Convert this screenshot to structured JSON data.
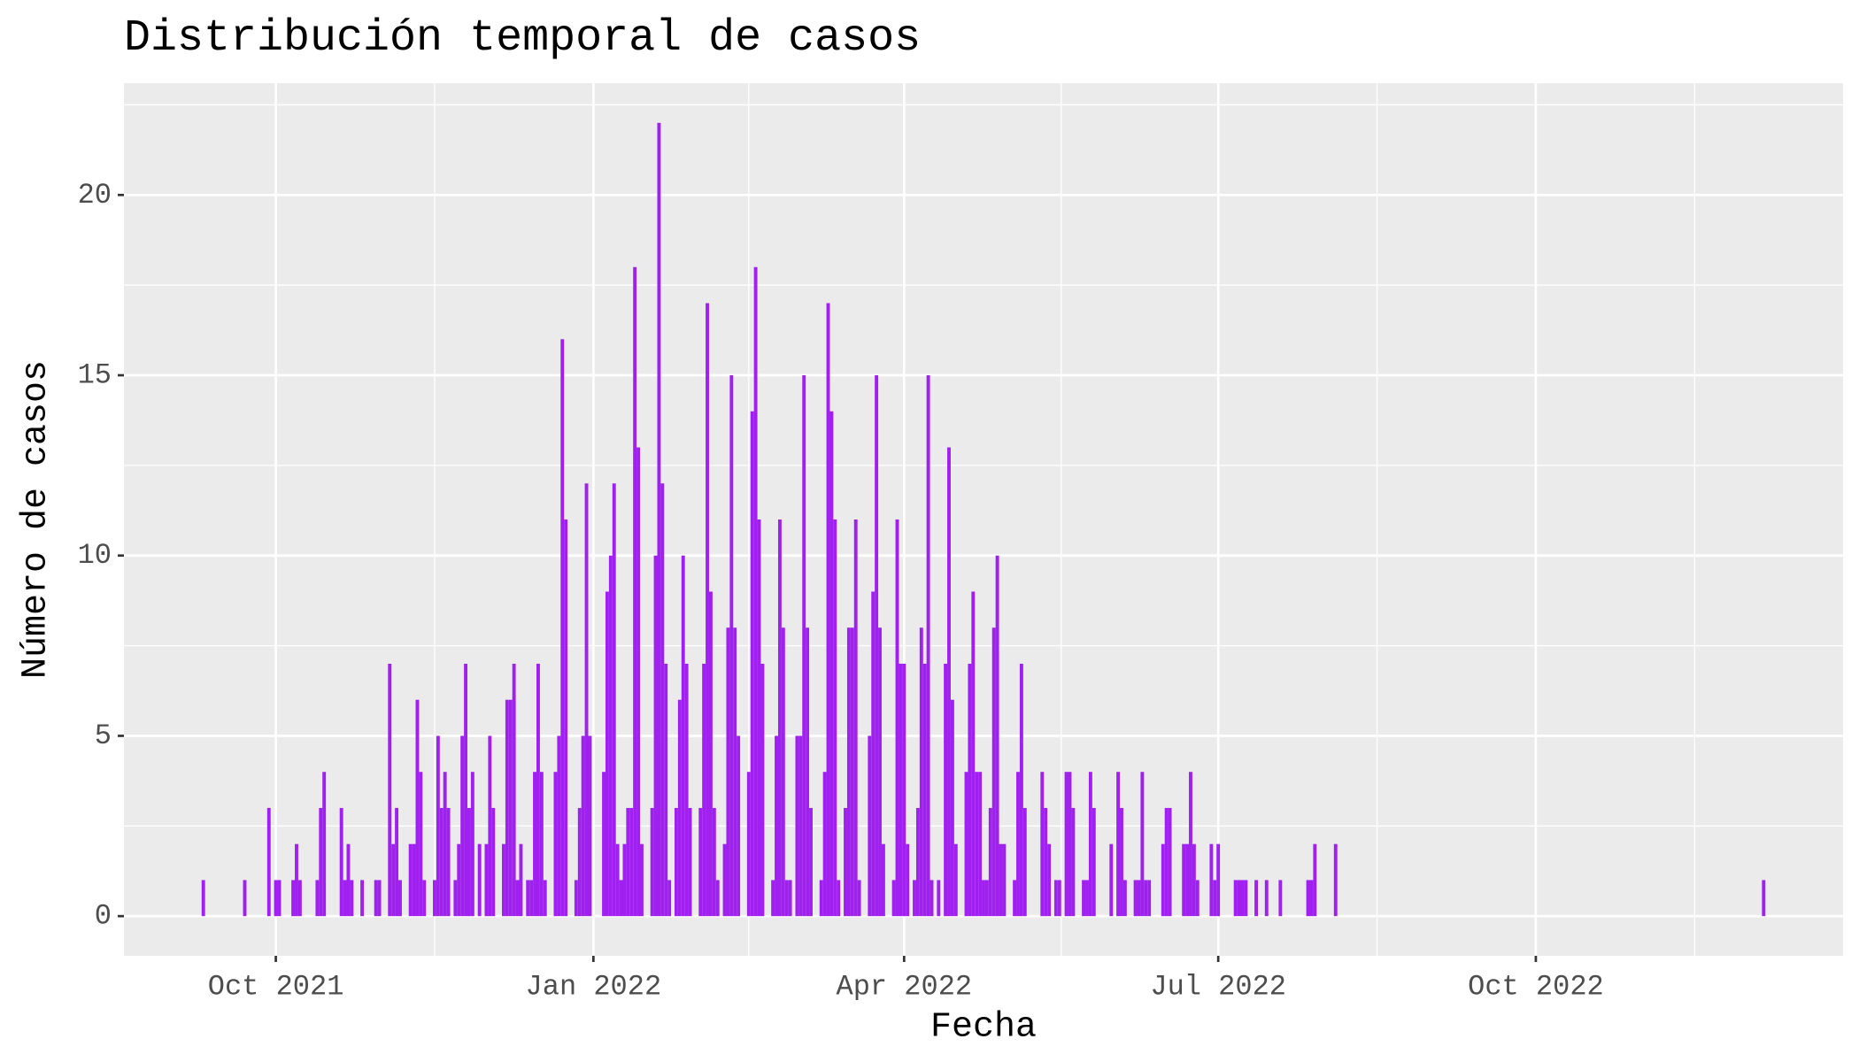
{
  "chart_data": {
    "type": "bar",
    "title": "Distribución temporal de casos",
    "x_label": "Fecha",
    "y_label": "Número de casos",
    "color": "#A020F0",
    "grid": true,
    "xlim": [
      "2021-08-18",
      "2022-12-29"
    ],
    "xticks": [
      {
        "value": "2021-10-01",
        "label": "Oct 2021"
      },
      {
        "value": "2022-01-01",
        "label": "Jan 2022"
      },
      {
        "value": "2022-04-01",
        "label": "Apr 2022"
      },
      {
        "value": "2022-07-01",
        "label": "Jul 2022"
      },
      {
        "value": "2022-10-01",
        "label": "Oct 2022"
      }
    ],
    "ylim": [
      -1.1,
      23.1
    ],
    "yticks": [
      0,
      5,
      10,
      15,
      20
    ],
    "x": [
      "2021-09-10",
      "2021-09-22",
      "2021-09-29",
      "2021-10-01",
      "2021-10-02",
      "2021-10-06",
      "2021-10-07",
      "2021-10-08",
      "2021-10-13",
      "2021-10-14",
      "2021-10-15",
      "2021-10-20",
      "2021-10-21",
      "2021-10-22",
      "2021-10-23",
      "2021-10-26",
      "2021-10-30",
      "2021-10-31",
      "2021-11-03",
      "2021-11-04",
      "2021-11-05",
      "2021-11-06",
      "2021-11-09",
      "2021-11-10",
      "2021-11-11",
      "2021-11-12",
      "2021-11-13",
      "2021-11-16",
      "2021-11-17",
      "2021-11-18",
      "2021-11-19",
      "2021-11-20",
      "2021-11-22",
      "2021-11-23",
      "2021-11-24",
      "2021-11-25",
      "2021-11-26",
      "2021-11-27",
      "2021-11-29",
      "2021-12-01",
      "2021-12-02",
      "2021-12-03",
      "2021-12-06",
      "2021-12-07",
      "2021-12-08",
      "2021-12-09",
      "2021-12-10",
      "2021-12-11",
      "2021-12-13",
      "2021-12-14",
      "2021-12-15",
      "2021-12-16",
      "2021-12-17",
      "2021-12-18",
      "2021-12-21",
      "2021-12-22",
      "2021-12-23",
      "2021-12-24",
      "2021-12-27",
      "2021-12-28",
      "2021-12-29",
      "2021-12-30",
      "2021-12-31",
      "2022-01-04",
      "2022-01-05",
      "2022-01-06",
      "2022-01-07",
      "2022-01-08",
      "2022-01-09",
      "2022-01-10",
      "2022-01-11",
      "2022-01-12",
      "2022-01-13",
      "2022-01-14",
      "2022-01-15",
      "2022-01-18",
      "2022-01-19",
      "2022-01-20",
      "2022-01-21",
      "2022-01-22",
      "2022-01-23",
      "2022-01-25",
      "2022-01-26",
      "2022-01-27",
      "2022-01-28",
      "2022-01-29",
      "2022-02-01",
      "2022-02-02",
      "2022-02-03",
      "2022-02-04",
      "2022-02-05",
      "2022-02-06",
      "2022-02-08",
      "2022-02-09",
      "2022-02-10",
      "2022-02-11",
      "2022-02-12",
      "2022-02-15",
      "2022-02-16",
      "2022-02-17",
      "2022-02-18",
      "2022-02-19",
      "2022-02-22",
      "2022-02-23",
      "2022-02-24",
      "2022-02-25",
      "2022-02-26",
      "2022-02-27",
      "2022-03-01",
      "2022-03-02",
      "2022-03-03",
      "2022-03-04",
      "2022-03-05",
      "2022-03-08",
      "2022-03-09",
      "2022-03-10",
      "2022-03-11",
      "2022-03-12",
      "2022-03-13",
      "2022-03-15",
      "2022-03-16",
      "2022-03-17",
      "2022-03-18",
      "2022-03-19",
      "2022-03-22",
      "2022-03-23",
      "2022-03-24",
      "2022-03-25",
      "2022-03-26",
      "2022-03-29",
      "2022-03-30",
      "2022-03-31",
      "2022-04-01",
      "2022-04-02",
      "2022-04-04",
      "2022-04-05",
      "2022-04-06",
      "2022-04-07",
      "2022-04-08",
      "2022-04-09",
      "2022-04-11",
      "2022-04-13",
      "2022-04-14",
      "2022-04-15",
      "2022-04-16",
      "2022-04-19",
      "2022-04-20",
      "2022-04-21",
      "2022-04-22",
      "2022-04-23",
      "2022-04-24",
      "2022-04-25",
      "2022-04-26",
      "2022-04-27",
      "2022-04-28",
      "2022-04-29",
      "2022-04-30",
      "2022-05-03",
      "2022-05-04",
      "2022-05-05",
      "2022-05-06",
      "2022-05-11",
      "2022-05-12",
      "2022-05-13",
      "2022-05-15",
      "2022-05-16",
      "2022-05-18",
      "2022-05-19",
      "2022-05-20",
      "2022-05-23",
      "2022-05-24",
      "2022-05-25",
      "2022-05-26",
      "2022-05-31",
      "2022-06-02",
      "2022-06-03",
      "2022-06-04",
      "2022-06-07",
      "2022-06-08",
      "2022-06-09",
      "2022-06-10",
      "2022-06-11",
      "2022-06-15",
      "2022-06-16",
      "2022-06-17",
      "2022-06-21",
      "2022-06-22",
      "2022-06-23",
      "2022-06-24",
      "2022-06-25",
      "2022-06-29",
      "2022-06-30",
      "2022-07-01",
      "2022-07-06",
      "2022-07-07",
      "2022-07-08",
      "2022-07-09",
      "2022-07-12",
      "2022-07-15",
      "2022-07-19",
      "2022-07-27",
      "2022-07-28",
      "2022-07-29",
      "2022-08-04",
      "2022-12-06"
    ],
    "values": [
      1,
      1,
      3,
      1,
      1,
      1,
      2,
      1,
      1,
      3,
      4,
      3,
      1,
      2,
      1,
      1,
      1,
      1,
      7,
      2,
      3,
      1,
      2,
      2,
      6,
      4,
      1,
      1,
      5,
      3,
      4,
      3,
      1,
      2,
      5,
      7,
      3,
      4,
      2,
      2,
      5,
      3,
      2,
      6,
      6,
      7,
      1,
      2,
      1,
      1,
      4,
      7,
      4,
      1,
      4,
      5,
      16,
      11,
      1,
      3,
      5,
      12,
      5,
      4,
      9,
      10,
      12,
      2,
      1,
      2,
      3,
      3,
      18,
      13,
      2,
      3,
      10,
      22,
      12,
      7,
      1,
      3,
      6,
      10,
      7,
      3,
      3,
      7,
      17,
      9,
      3,
      1,
      2,
      8,
      15,
      8,
      5,
      4,
      14,
      18,
      11,
      7,
      1,
      5,
      11,
      8,
      1,
      1,
      5,
      5,
      15,
      8,
      3,
      1,
      4,
      17,
      14,
      11,
      1,
      3,
      8,
      8,
      11,
      1,
      5,
      9,
      15,
      8,
      2,
      1,
      11,
      7,
      7,
      2,
      1,
      3,
      8,
      7,
      15,
      1,
      1,
      7,
      13,
      6,
      2,
      4,
      7,
      9,
      4,
      4,
      1,
      1,
      3,
      8,
      10,
      2,
      2,
      1,
      4,
      7,
      3,
      4,
      3,
      2,
      1,
      1,
      4,
      4,
      3,
      1,
      1,
      4,
      3,
      2,
      4,
      3,
      1,
      1,
      1,
      4,
      1,
      1,
      2,
      3,
      3,
      2,
      2,
      4,
      2,
      1,
      2,
      1,
      2,
      1,
      1,
      1,
      1,
      1,
      1,
      1,
      1,
      1,
      2,
      2,
      1
    ]
  }
}
